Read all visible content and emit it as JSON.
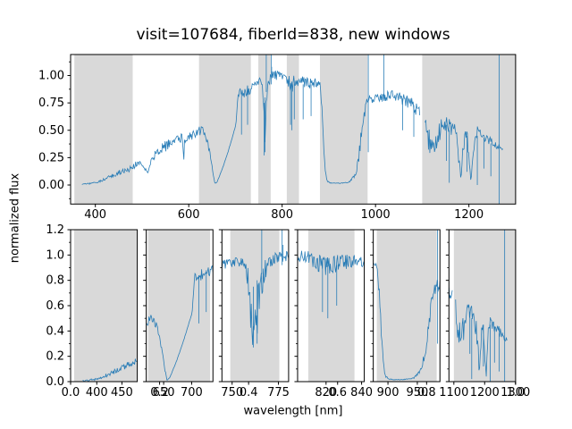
{
  "figure": {
    "title": "visit=107684, fiberId=838, new windows",
    "xlabel": "wavelength [nm]",
    "ylabel": "normalized flux"
  },
  "style": {
    "line_color": "#1f77b4",
    "span_color": "#d9d9d9",
    "spine_color": "#000000",
    "text_color": "#000000",
    "line_width": 0.8,
    "tick_font_px": 13
  },
  "chart_data": {
    "type": "line",
    "title": "visit=107684, fiberId=838, new windows",
    "xlabel": "wavelength [nm]",
    "ylabel": "normalized flux",
    "series_name": "spectrum",
    "legend": "none",
    "grid": false,
    "windows_nm": [
      [
        355,
        480
      ],
      [
        622,
        733
      ],
      [
        749,
        775.5
      ],
      [
        810,
        836
      ],
      [
        881,
        983
      ],
      [
        1100,
        1310
      ]
    ],
    "envelope_wl_flux_noise": [
      [
        371,
        0.005,
        0.004
      ],
      [
        382,
        0.01,
        0.006
      ],
      [
        395,
        0.018,
        0.009
      ],
      [
        410,
        0.035,
        0.012
      ],
      [
        425,
        0.06,
        0.016
      ],
      [
        440,
        0.09,
        0.02
      ],
      [
        452,
        0.115,
        0.024
      ],
      [
        465,
        0.14,
        0.028
      ],
      [
        478,
        0.155,
        0.03
      ],
      [
        486,
        0.185,
        0.03
      ],
      [
        493,
        0.21,
        0.028
      ],
      [
        500,
        0.165,
        0.026
      ],
      [
        507,
        0.15,
        0.024
      ],
      [
        513,
        0.105,
        0.02
      ],
      [
        517,
        0.2,
        0.03
      ],
      [
        524,
        0.26,
        0.035
      ],
      [
        538,
        0.32,
        0.045
      ],
      [
        552,
        0.36,
        0.05
      ],
      [
        566,
        0.39,
        0.05
      ],
      [
        580,
        0.42,
        0.05
      ],
      [
        587,
        0.43,
        0.04
      ],
      [
        589,
        0.2,
        0.02
      ],
      [
        591,
        0.42,
        0.05
      ],
      [
        602,
        0.44,
        0.05
      ],
      [
        614,
        0.465,
        0.05
      ],
      [
        626,
        0.495,
        0.045
      ],
      [
        634,
        0.475,
        0.04
      ],
      [
        641,
        0.38,
        0.03
      ],
      [
        647,
        0.25,
        0.02
      ],
      [
        652,
        0.1,
        0.012
      ],
      [
        656,
        0.012,
        0.004
      ],
      [
        661,
        0.03,
        0.003
      ],
      [
        672,
        0.15,
        0.003
      ],
      [
        684,
        0.3,
        0.003
      ],
      [
        695,
        0.46,
        0.003
      ],
      [
        701,
        0.55,
        0.005
      ],
      [
        703,
        0.68,
        0.03
      ],
      [
        706,
        0.82,
        0.05
      ],
      [
        712,
        0.85,
        0.05
      ],
      [
        720,
        0.84,
        0.05
      ],
      [
        728,
        0.87,
        0.05
      ],
      [
        736,
        0.89,
        0.045
      ],
      [
        744,
        0.915,
        0.04
      ],
      [
        751,
        0.945,
        0.035
      ],
      [
        757,
        0.95,
        0.045
      ],
      [
        759,
        0.72,
        0.15
      ],
      [
        761,
        0.46,
        0.19
      ],
      [
        763,
        0.52,
        0.2
      ],
      [
        765,
        0.68,
        0.16
      ],
      [
        767,
        0.85,
        0.1
      ],
      [
        770,
        0.95,
        0.055
      ],
      [
        776,
        0.99,
        0.05
      ],
      [
        784,
        1.0,
        0.045
      ],
      [
        794,
        1.0,
        0.04
      ],
      [
        804,
        0.995,
        0.042
      ],
      [
        810,
        0.98,
        0.05
      ],
      [
        815,
        0.94,
        0.065
      ],
      [
        820,
        0.92,
        0.085
      ],
      [
        825,
        0.93,
        0.075
      ],
      [
        830,
        0.945,
        0.06
      ],
      [
        836,
        0.955,
        0.05
      ],
      [
        844,
        0.94,
        0.055
      ],
      [
        852,
        0.935,
        0.055
      ],
      [
        860,
        0.925,
        0.055
      ],
      [
        868,
        0.93,
        0.05
      ],
      [
        876,
        0.94,
        0.04
      ],
      [
        881,
        0.9,
        0.04
      ],
      [
        885,
        0.72,
        0.06
      ],
      [
        889,
        0.38,
        0.05
      ],
      [
        892,
        0.14,
        0.025
      ],
      [
        896,
        0.04,
        0.008
      ],
      [
        902,
        0.02,
        0.004
      ],
      [
        912,
        0.016,
        0.003
      ],
      [
        924,
        0.016,
        0.003
      ],
      [
        936,
        0.02,
        0.004
      ],
      [
        945,
        0.03,
        0.008
      ],
      [
        951,
        0.06,
        0.014
      ],
      [
        957,
        0.1,
        0.02
      ],
      [
        963,
        0.22,
        0.045
      ],
      [
        968,
        0.4,
        0.06
      ],
      [
        972,
        0.55,
        0.06
      ],
      [
        976,
        0.66,
        0.055
      ],
      [
        980,
        0.73,
        0.05
      ],
      [
        985,
        0.76,
        0.05
      ],
      [
        992,
        0.775,
        0.05
      ],
      [
        1002,
        0.785,
        0.05
      ],
      [
        1014,
        0.795,
        0.05
      ],
      [
        1026,
        0.81,
        0.05
      ],
      [
        1038,
        0.815,
        0.05
      ],
      [
        1048,
        0.805,
        0.05
      ],
      [
        1058,
        0.785,
        0.055
      ],
      [
        1068,
        0.765,
        0.055
      ],
      [
        1078,
        0.735,
        0.06
      ],
      [
        1088,
        0.7,
        0.065
      ],
      [
        1096,
        0.665,
        0.07
      ],
      [
        1100,
        null,
        0
      ],
      [
        1105,
        0.6,
        0.08
      ],
      [
        1110,
        0.47,
        0.12
      ],
      [
        1116,
        0.37,
        0.13
      ],
      [
        1122,
        0.33,
        0.11
      ],
      [
        1128,
        0.38,
        0.12
      ],
      [
        1134,
        0.46,
        0.11
      ],
      [
        1140,
        0.51,
        0.09
      ],
      [
        1147,
        0.545,
        0.07
      ],
      [
        1154,
        0.555,
        0.065
      ],
      [
        1161,
        0.535,
        0.07
      ],
      [
        1168,
        0.49,
        0.09
      ],
      [
        1174,
        0.4,
        0.1
      ],
      [
        1179,
        0.22,
        0.07
      ],
      [
        1183,
        0.06,
        0.03
      ],
      [
        1187,
        0.28,
        0.08
      ],
      [
        1192,
        0.47,
        0.06
      ],
      [
        1197,
        0.4,
        0.08
      ],
      [
        1202,
        0.12,
        0.05
      ],
      [
        1205,
        0.045,
        0.02
      ],
      [
        1209,
        0.28,
        0.06
      ],
      [
        1213,
        0.44,
        0.05
      ],
      [
        1219,
        0.5,
        0.055
      ],
      [
        1225,
        0.465,
        0.05
      ],
      [
        1233,
        0.435,
        0.045
      ],
      [
        1241,
        0.415,
        0.04
      ],
      [
        1249,
        0.39,
        0.038
      ],
      [
        1257,
        0.365,
        0.032
      ],
      [
        1263,
        0.35,
        0.028
      ],
      [
        1268,
        0.34,
        0.02
      ],
      [
        1274,
        0.335,
        0.015
      ]
    ],
    "spikes_wl_v0_v1": [
      [
        713,
        0.46,
        0.84
      ],
      [
        726,
        0.55,
        0.88
      ],
      [
        766,
        0.85,
        1.25
      ],
      [
        777,
        0.92,
        1.25
      ],
      [
        777.5,
        0.98,
        1.08
      ],
      [
        761.5,
        0.27,
        0.75
      ],
      [
        763.5,
        0.3,
        0.8
      ],
      [
        818,
        0.55,
        0.93
      ],
      [
        821,
        0.5,
        0.92
      ],
      [
        826,
        0.6,
        0.92
      ],
      [
        845,
        0.6,
        0.92
      ],
      [
        862,
        0.63,
        0.92
      ],
      [
        984.5,
        0.3,
        1.25
      ],
      [
        1018,
        0.78,
        1.25
      ],
      [
        1058,
        0.5,
        0.79
      ],
      [
        1082,
        0.44,
        0.73
      ],
      [
        1152,
        0.22,
        0.55
      ],
      [
        1158,
        0.02,
        0.5
      ],
      [
        1196,
        0.12,
        0.45
      ],
      [
        1218,
        0.0,
        0.45
      ],
      [
        1232,
        0.15,
        0.43
      ],
      [
        1247,
        0.08,
        0.38
      ],
      [
        1265,
        -0.2,
        1.25
      ]
    ],
    "main_axes": {
      "xlim": [
        347,
        1300
      ],
      "ylim": [
        -0.174,
        1.192
      ],
      "xticks": [
        [
          400,
          "400"
        ],
        [
          600,
          "600"
        ],
        [
          800,
          "800"
        ],
        [
          1000,
          "1000"
        ],
        [
          1200,
          "1200"
        ]
      ],
      "yticks": [
        [
          0,
          "0.00"
        ],
        [
          0.25,
          "0.25"
        ],
        [
          0.5,
          "0.50"
        ],
        [
          0.75,
          "0.75"
        ],
        [
          1,
          "1.00"
        ]
      ],
      "yminor": [
        -0.125,
        0.125,
        0.375,
        0.625,
        0.875,
        1.125
      ]
    },
    "sub_axes_shared": {
      "ylim": [
        0,
        1.2
      ],
      "yticks": [
        [
          0,
          "0.0"
        ],
        [
          0.2,
          "0.2"
        ],
        [
          0.4,
          "0.4"
        ],
        [
          0.6,
          "0.6"
        ],
        [
          0.8,
          "0.8"
        ],
        [
          1,
          "1.0"
        ],
        [
          1.2,
          "1.2"
        ]
      ],
      "yminor": [
        0.1,
        0.3,
        0.5,
        0.7,
        0.9,
        1.1
      ]
    },
    "sub_axes": [
      {
        "xlim": [
          348,
          480.5
        ],
        "xticks": [
          [
            400,
            "400"
          ],
          [
            450,
            "450"
          ]
        ]
      },
      {
        "xlim": [
          619,
          738
        ],
        "xticks": [
          [
            650,
            "650"
          ],
          [
            700,
            "700"
          ]
        ]
      },
      {
        "xlim": [
          744.5,
          780.5
        ],
        "xticks": [
          [
            750,
            "750"
          ],
          [
            775,
            "775"
          ]
        ]
      },
      {
        "xlim": [
          804,
          841.5
        ],
        "xticks": [
          [
            820,
            "820"
          ],
          [
            840,
            "840"
          ]
        ]
      },
      {
        "xlim": [
          875,
          988.5
        ],
        "xticks": [
          [
            900,
            "900"
          ],
          [
            950,
            "950"
          ]
        ]
      },
      {
        "xlim": [
          1084,
          1300.5
        ],
        "xticks": [
          [
            1100,
            "1100"
          ],
          [
            1200,
            "1200"
          ],
          [
            1300,
            "1300"
          ]
        ]
      }
    ],
    "outer_axis_xticks": [
      [
        0,
        "0.0"
      ],
      [
        0.2,
        "0.2"
      ],
      [
        0.4,
        "0.4"
      ],
      [
        0.6,
        "0.6"
      ],
      [
        0.8,
        "0.8"
      ],
      [
        1,
        "1.0"
      ]
    ]
  }
}
